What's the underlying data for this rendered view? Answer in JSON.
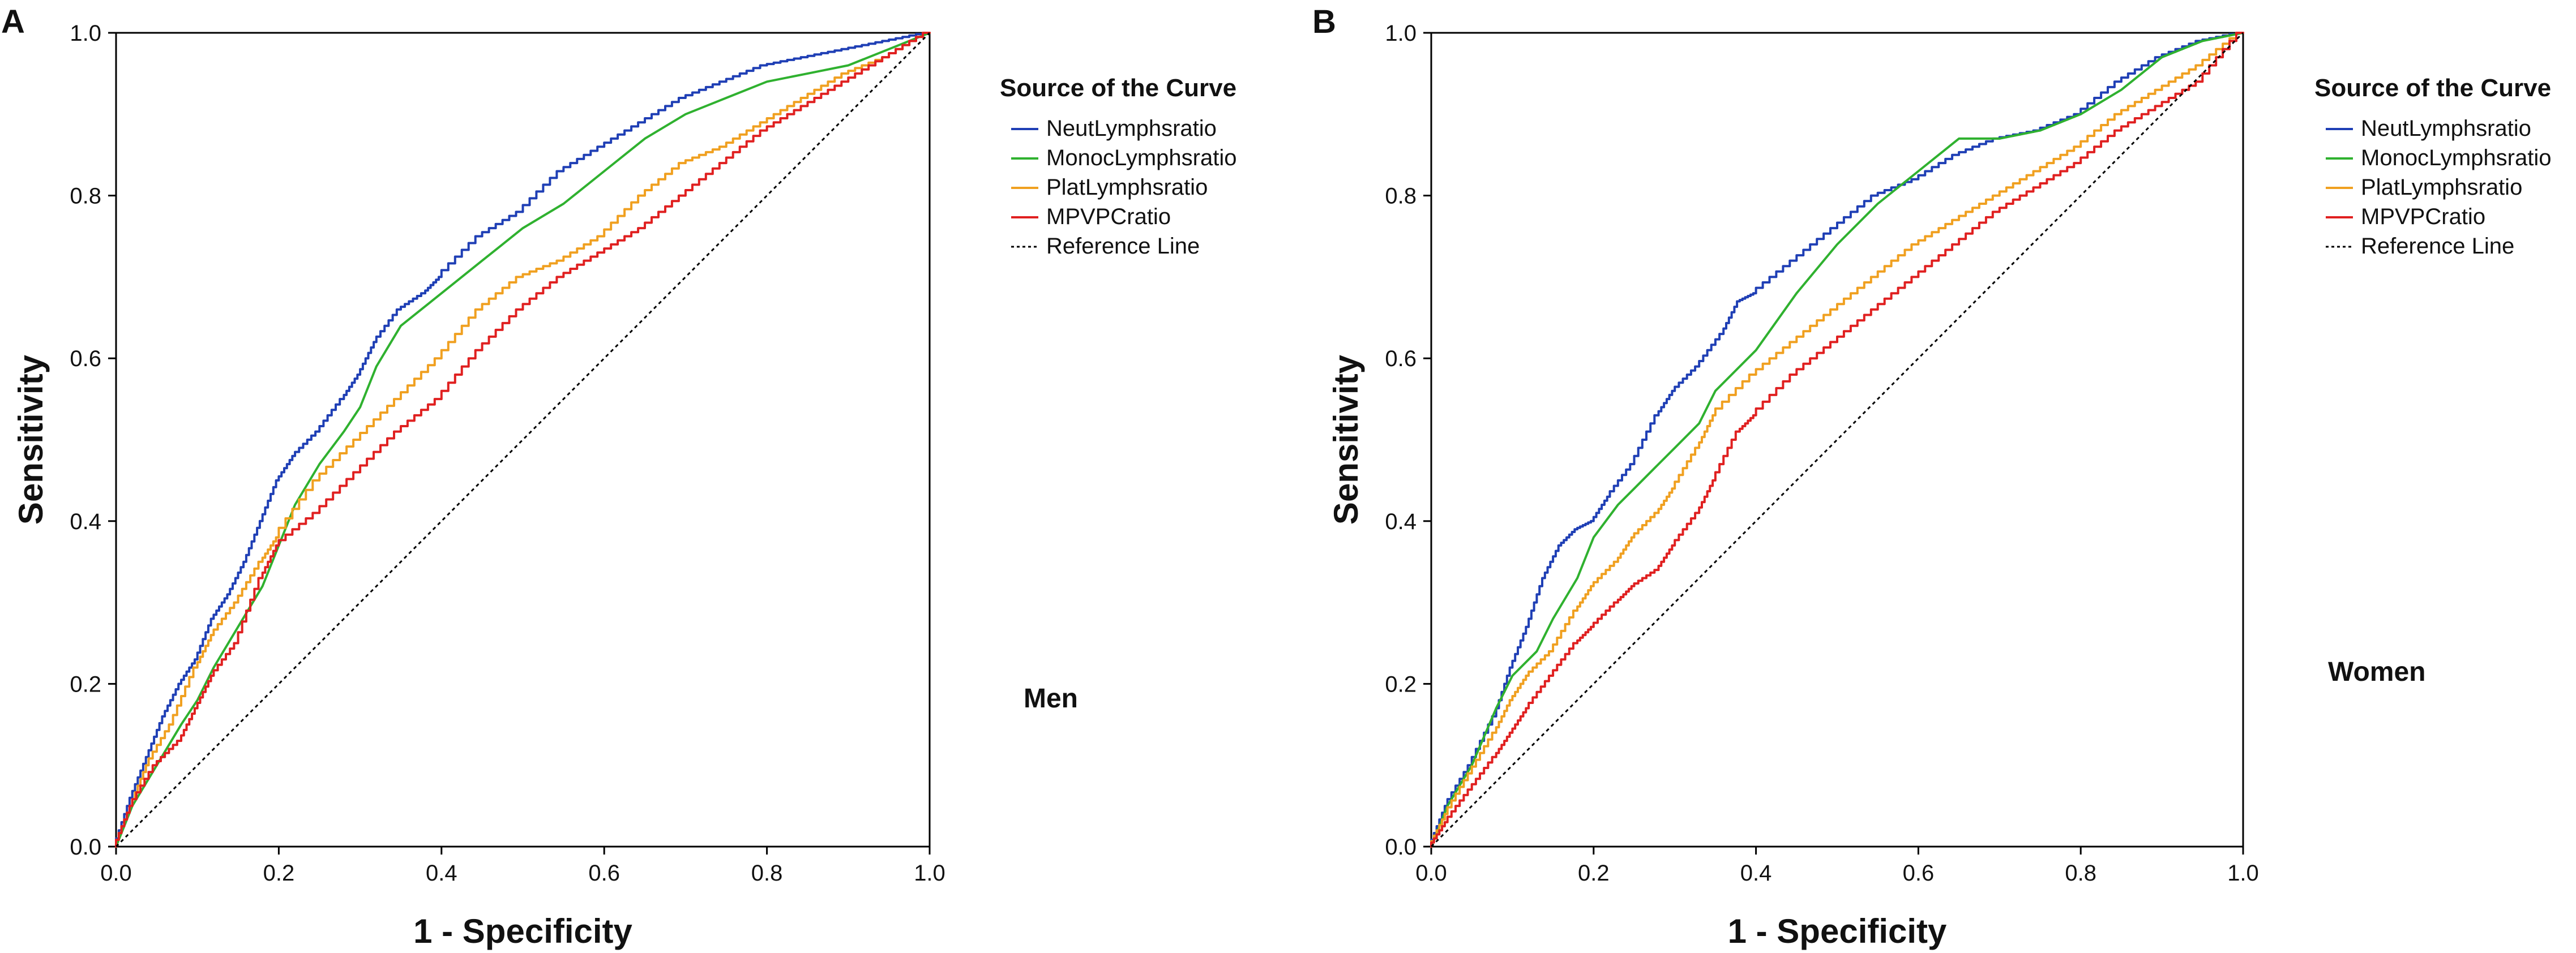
{
  "chart_data": [
    {
      "panel": "A",
      "type": "line",
      "title": "",
      "xlabel": "1 - Specificity",
      "ylabel": "Sensitivity",
      "xlim": [
        0.0,
        1.0
      ],
      "ylim": [
        0.0,
        1.0
      ],
      "xticks": [
        "0.0",
        "0.2",
        "0.4",
        "0.6",
        "0.8",
        "1.0"
      ],
      "yticks": [
        "0.0",
        "0.2",
        "0.4",
        "0.6",
        "0.8",
        "1.0"
      ],
      "annotation": "Men",
      "legend_title": "Source of the Curve",
      "legend_position": "right",
      "series": [
        {
          "name": "NeutLymphsratio",
          "color": "#1f3fb5",
          "style": "step",
          "points": [
            [
              0,
              0
            ],
            [
              0.02,
              0.06
            ],
            [
              0.04,
              0.11
            ],
            [
              0.06,
              0.16
            ],
            [
              0.08,
              0.2
            ],
            [
              0.1,
              0.23
            ],
            [
              0.12,
              0.28
            ],
            [
              0.14,
              0.31
            ],
            [
              0.16,
              0.35
            ],
            [
              0.18,
              0.4
            ],
            [
              0.2,
              0.45
            ],
            [
              0.22,
              0.48
            ],
            [
              0.25,
              0.51
            ],
            [
              0.28,
              0.55
            ],
            [
              0.3,
              0.58
            ],
            [
              0.32,
              0.62
            ],
            [
              0.35,
              0.66
            ],
            [
              0.38,
              0.68
            ],
            [
              0.4,
              0.7
            ],
            [
              0.45,
              0.75
            ],
            [
              0.5,
              0.78
            ],
            [
              0.55,
              0.83
            ],
            [
              0.6,
              0.86
            ],
            [
              0.65,
              0.89
            ],
            [
              0.7,
              0.92
            ],
            [
              0.75,
              0.94
            ],
            [
              0.8,
              0.96
            ],
            [
              0.85,
              0.97
            ],
            [
              0.9,
              0.98
            ],
            [
              0.95,
              0.99
            ],
            [
              1,
              1
            ]
          ]
        },
        {
          "name": "MonocLymphsratio",
          "color": "#2fb12f",
          "style": "smooth",
          "points": [
            [
              0,
              0
            ],
            [
              0.02,
              0.05
            ],
            [
              0.05,
              0.1
            ],
            [
              0.08,
              0.15
            ],
            [
              0.1,
              0.18
            ],
            [
              0.12,
              0.22
            ],
            [
              0.15,
              0.27
            ],
            [
              0.18,
              0.32
            ],
            [
              0.2,
              0.37
            ],
            [
              0.22,
              0.42
            ],
            [
              0.25,
              0.47
            ],
            [
              0.28,
              0.51
            ],
            [
              0.3,
              0.54
            ],
            [
              0.32,
              0.59
            ],
            [
              0.35,
              0.64
            ],
            [
              0.4,
              0.68
            ],
            [
              0.45,
              0.72
            ],
            [
              0.5,
              0.76
            ],
            [
              0.55,
              0.79
            ],
            [
              0.6,
              0.83
            ],
            [
              0.65,
              0.87
            ],
            [
              0.7,
              0.9
            ],
            [
              0.75,
              0.92
            ],
            [
              0.8,
              0.94
            ],
            [
              0.85,
              0.95
            ],
            [
              0.9,
              0.96
            ],
            [
              0.95,
              0.98
            ],
            [
              1,
              1
            ]
          ]
        },
        {
          "name": "PlatLymphsratio",
          "color": "#f0a020",
          "style": "step",
          "points": [
            [
              0,
              0
            ],
            [
              0.02,
              0.05
            ],
            [
              0.04,
              0.1
            ],
            [
              0.07,
              0.15
            ],
            [
              0.1,
              0.22
            ],
            [
              0.12,
              0.26
            ],
            [
              0.15,
              0.3
            ],
            [
              0.18,
              0.35
            ],
            [
              0.2,
              0.38
            ],
            [
              0.25,
              0.45
            ],
            [
              0.3,
              0.5
            ],
            [
              0.35,
              0.55
            ],
            [
              0.4,
              0.6
            ],
            [
              0.45,
              0.66
            ],
            [
              0.5,
              0.7
            ],
            [
              0.55,
              0.72
            ],
            [
              0.6,
              0.75
            ],
            [
              0.65,
              0.8
            ],
            [
              0.7,
              0.84
            ],
            [
              0.75,
              0.86
            ],
            [
              0.8,
              0.89
            ],
            [
              0.85,
              0.92
            ],
            [
              0.9,
              0.95
            ],
            [
              0.95,
              0.97
            ],
            [
              1,
              1
            ]
          ]
        },
        {
          "name": "MPVPCratio",
          "color": "#e02020",
          "style": "step",
          "points": [
            [
              0,
              0
            ],
            [
              0.02,
              0.05
            ],
            [
              0.05,
              0.1
            ],
            [
              0.08,
              0.13
            ],
            [
              0.1,
              0.17
            ],
            [
              0.12,
              0.21
            ],
            [
              0.15,
              0.25
            ],
            [
              0.18,
              0.33
            ],
            [
              0.2,
              0.37
            ],
            [
              0.25,
              0.41
            ],
            [
              0.3,
              0.46
            ],
            [
              0.35,
              0.51
            ],
            [
              0.4,
              0.55
            ],
            [
              0.45,
              0.61
            ],
            [
              0.5,
              0.66
            ],
            [
              0.55,
              0.7
            ],
            [
              0.6,
              0.73
            ],
            [
              0.65,
              0.76
            ],
            [
              0.7,
              0.8
            ],
            [
              0.75,
              0.84
            ],
            [
              0.8,
              0.88
            ],
            [
              0.85,
              0.91
            ],
            [
              0.9,
              0.94
            ],
            [
              0.95,
              0.97
            ],
            [
              1,
              1
            ]
          ]
        },
        {
          "name": "Reference Line",
          "color": "#000000",
          "style": "dashed",
          "points": [
            [
              0,
              0
            ],
            [
              1,
              1
            ]
          ]
        }
      ]
    },
    {
      "panel": "B",
      "type": "line",
      "title": "",
      "xlabel": "1 - Specificity",
      "ylabel": "Sensitivity",
      "xlim": [
        0.0,
        1.0
      ],
      "ylim": [
        0.0,
        1.0
      ],
      "xticks": [
        "0.0",
        "0.2",
        "0.4",
        "0.6",
        "0.8",
        "1.0"
      ],
      "yticks": [
        "0.0",
        "0.2",
        "0.4",
        "0.6",
        "0.8",
        "1.0"
      ],
      "annotation": "Women",
      "legend_title": "Source of the Curve",
      "legend_position": "right",
      "series": [
        {
          "name": "NeutLymphsratio",
          "color": "#1f3fb5",
          "style": "step",
          "points": [
            [
              0,
              0
            ],
            [
              0.02,
              0.05
            ],
            [
              0.05,
              0.1
            ],
            [
              0.08,
              0.16
            ],
            [
              0.1,
              0.22
            ],
            [
              0.12,
              0.27
            ],
            [
              0.14,
              0.33
            ],
            [
              0.16,
              0.37
            ],
            [
              0.18,
              0.39
            ],
            [
              0.2,
              0.4
            ],
            [
              0.22,
              0.43
            ],
            [
              0.25,
              0.47
            ],
            [
              0.28,
              0.53
            ],
            [
              0.3,
              0.56
            ],
            [
              0.33,
              0.59
            ],
            [
              0.36,
              0.63
            ],
            [
              0.38,
              0.67
            ],
            [
              0.4,
              0.68
            ],
            [
              0.45,
              0.72
            ],
            [
              0.5,
              0.76
            ],
            [
              0.55,
              0.8
            ],
            [
              0.6,
              0.82
            ],
            [
              0.65,
              0.85
            ],
            [
              0.7,
              0.87
            ],
            [
              0.75,
              0.88
            ],
            [
              0.8,
              0.9
            ],
            [
              0.85,
              0.94
            ],
            [
              0.9,
              0.97
            ],
            [
              0.95,
              0.99
            ],
            [
              1,
              1
            ]
          ]
        },
        {
          "name": "MonocLymphsratio",
          "color": "#2fb12f",
          "style": "smooth",
          "points": [
            [
              0,
              0
            ],
            [
              0.02,
              0.05
            ],
            [
              0.05,
              0.1
            ],
            [
              0.08,
              0.17
            ],
            [
              0.1,
              0.21
            ],
            [
              0.13,
              0.24
            ],
            [
              0.15,
              0.28
            ],
            [
              0.18,
              0.33
            ],
            [
              0.2,
              0.38
            ],
            [
              0.23,
              0.42
            ],
            [
              0.25,
              0.44
            ],
            [
              0.28,
              0.47
            ],
            [
              0.3,
              0.49
            ],
            [
              0.33,
              0.52
            ],
            [
              0.35,
              0.56
            ],
            [
              0.4,
              0.61
            ],
            [
              0.45,
              0.68
            ],
            [
              0.5,
              0.74
            ],
            [
              0.55,
              0.79
            ],
            [
              0.6,
              0.83
            ],
            [
              0.65,
              0.87
            ],
            [
              0.7,
              0.87
            ],
            [
              0.75,
              0.88
            ],
            [
              0.8,
              0.9
            ],
            [
              0.85,
              0.93
            ],
            [
              0.9,
              0.97
            ],
            [
              0.95,
              0.99
            ],
            [
              1,
              1
            ]
          ]
        },
        {
          "name": "PlatLymphsratio",
          "color": "#f0a020",
          "style": "step",
          "points": [
            [
              0,
              0
            ],
            [
              0.02,
              0.04
            ],
            [
              0.05,
              0.09
            ],
            [
              0.08,
              0.14
            ],
            [
              0.1,
              0.18
            ],
            [
              0.12,
              0.21
            ],
            [
              0.15,
              0.24
            ],
            [
              0.18,
              0.29
            ],
            [
              0.2,
              0.32
            ],
            [
              0.23,
              0.35
            ],
            [
              0.25,
              0.38
            ],
            [
              0.28,
              0.41
            ],
            [
              0.3,
              0.44
            ],
            [
              0.33,
              0.49
            ],
            [
              0.35,
              0.53
            ],
            [
              0.4,
              0.58
            ],
            [
              0.45,
              0.62
            ],
            [
              0.5,
              0.66
            ],
            [
              0.55,
              0.7
            ],
            [
              0.6,
              0.74
            ],
            [
              0.65,
              0.77
            ],
            [
              0.7,
              0.8
            ],
            [
              0.75,
              0.83
            ],
            [
              0.8,
              0.86
            ],
            [
              0.85,
              0.9
            ],
            [
              0.9,
              0.93
            ],
            [
              0.95,
              0.96
            ],
            [
              1,
              1
            ]
          ]
        },
        {
          "name": "MPVPCratio",
          "color": "#e02020",
          "style": "step",
          "points": [
            [
              0,
              0
            ],
            [
              0.02,
              0.03
            ],
            [
              0.05,
              0.07
            ],
            [
              0.08,
              0.11
            ],
            [
              0.1,
              0.14
            ],
            [
              0.12,
              0.17
            ],
            [
              0.15,
              0.21
            ],
            [
              0.18,
              0.25
            ],
            [
              0.2,
              0.27
            ],
            [
              0.23,
              0.3
            ],
            [
              0.25,
              0.32
            ],
            [
              0.28,
              0.34
            ],
            [
              0.3,
              0.37
            ],
            [
              0.33,
              0.41
            ],
            [
              0.35,
              0.45
            ],
            [
              0.38,
              0.51
            ],
            [
              0.4,
              0.53
            ],
            [
              0.45,
              0.58
            ],
            [
              0.5,
              0.62
            ],
            [
              0.55,
              0.66
            ],
            [
              0.6,
              0.7
            ],
            [
              0.65,
              0.74
            ],
            [
              0.7,
              0.78
            ],
            [
              0.75,
              0.81
            ],
            [
              0.8,
              0.84
            ],
            [
              0.85,
              0.88
            ],
            [
              0.9,
              0.91
            ],
            [
              0.95,
              0.94
            ],
            [
              1,
              1
            ]
          ]
        },
        {
          "name": "Reference Line",
          "color": "#000000",
          "style": "dashed",
          "points": [
            [
              0,
              0
            ],
            [
              1,
              1
            ]
          ]
        }
      ]
    }
  ]
}
